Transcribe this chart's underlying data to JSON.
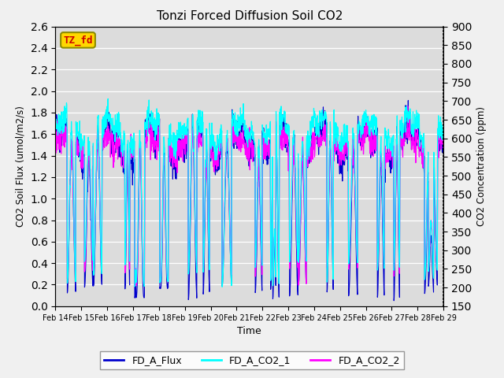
{
  "title": "Tonzi Forced Diffusion Soil CO2",
  "xlabel": "Time",
  "ylabel_left": "CO2 Soil Flux (umol/m2/s)",
  "ylabel_right": "CO2 Concentration (ppm)",
  "ylim_left": [
    0.0,
    2.6
  ],
  "ylim_right": [
    150,
    900
  ],
  "yticks_left": [
    0.0,
    0.2,
    0.4,
    0.6,
    0.8,
    1.0,
    1.2,
    1.4,
    1.6,
    1.8,
    2.0,
    2.2,
    2.4,
    2.6
  ],
  "yticks_right": [
    150,
    200,
    250,
    300,
    350,
    400,
    450,
    500,
    550,
    600,
    650,
    700,
    750,
    800,
    850,
    900
  ],
  "xtick_labels": [
    "Feb 14",
    "Feb 15",
    "Feb 16",
    "Feb 17",
    "Feb 18",
    "Feb 19",
    "Feb 20",
    "Feb 21",
    "Feb 22",
    "Feb 23",
    "Feb 24",
    "Feb 25",
    "Feb 26",
    "Feb 27",
    "Feb 28",
    "Feb 29"
  ],
  "num_days": 15,
  "points_per_day": 96,
  "color_flux": "#0000CD",
  "color_co2_1": "#00FFFF",
  "color_co2_2": "#FF00FF",
  "legend_labels": [
    "FD_A_Flux",
    "FD_A_CO2_1",
    "FD_A_CO2_2"
  ],
  "tag_text": "TZ_fd",
  "tag_facecolor": "#FFD700",
  "tag_text_color": "#CC0000",
  "tag_edgecolor": "#8B8B00",
  "background_color": "#DCDCDC",
  "grid_color": "#FFFFFF",
  "fig_background": "#F0F0F0",
  "seed": 12345
}
